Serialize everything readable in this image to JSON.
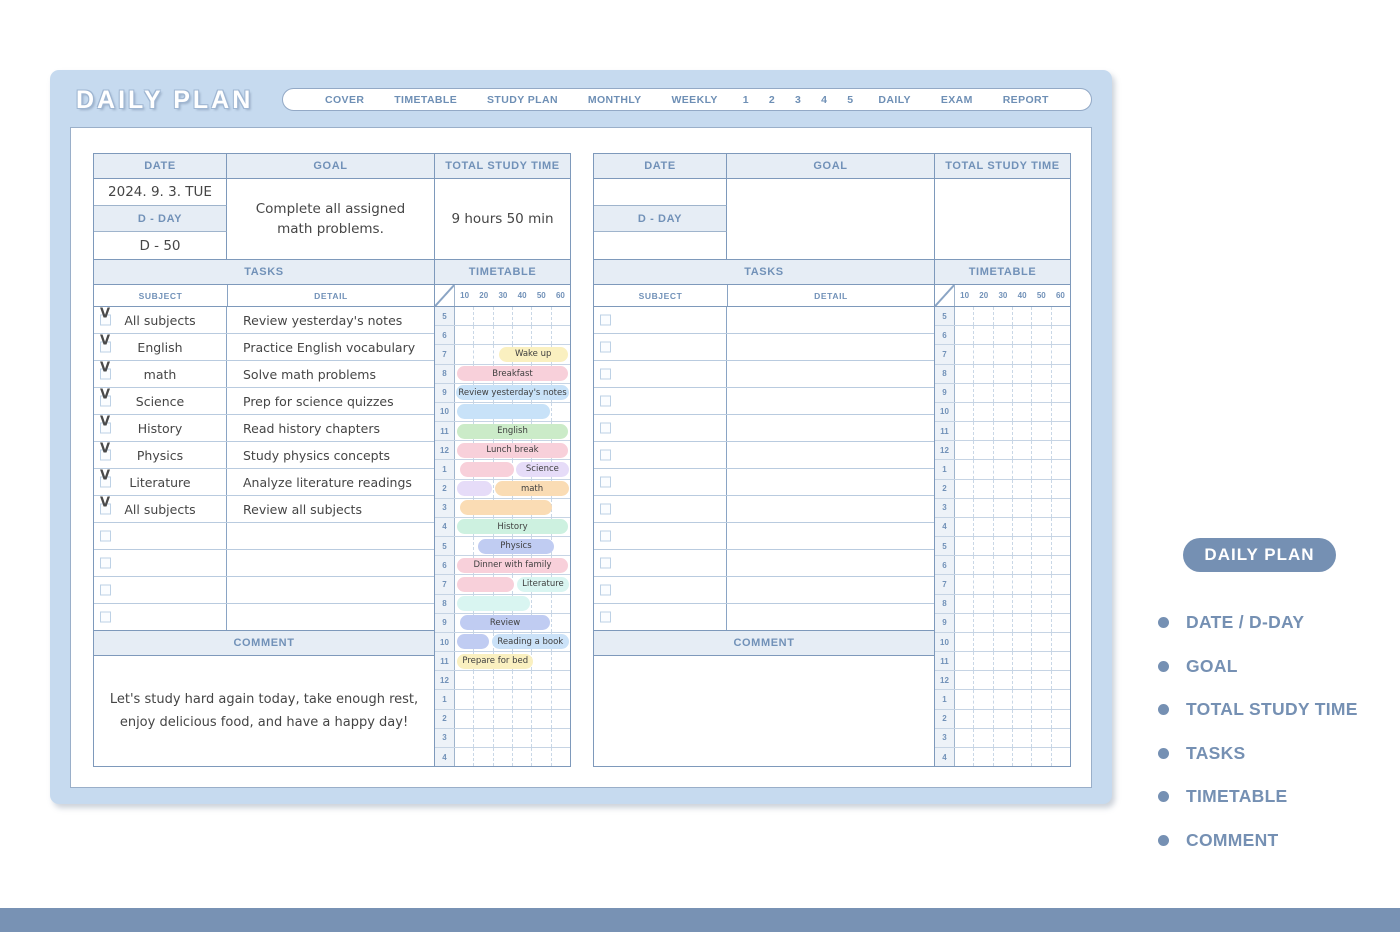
{
  "header": {
    "title": "DAILY PLAN",
    "nav": [
      "COVER",
      "TIMETABLE",
      "STUDY PLAN",
      "MONTHLY",
      "WEEKLY",
      "1",
      "2",
      "3",
      "4",
      "5",
      "DAILY",
      "EXAM",
      "REPORT"
    ]
  },
  "labels": {
    "date": "DATE",
    "goal": "GOAL",
    "total_study_time": "TOTAL STUDY TIME",
    "d_day": "D - DAY",
    "tasks": "TASKS",
    "subject": "SUBJECT",
    "detail": "DETAIL",
    "timetable": "TIMETABLE",
    "comment": "COMMENT"
  },
  "timetable": {
    "minutes": [
      "10",
      "20",
      "30",
      "40",
      "50",
      "60"
    ],
    "hours": [
      "5",
      "6",
      "7",
      "8",
      "9",
      "10",
      "11",
      "12",
      "1",
      "2",
      "3",
      "4",
      "5",
      "6",
      "7",
      "8",
      "9",
      "10",
      "11",
      "12",
      "1",
      "2",
      "3",
      "4"
    ]
  },
  "left_page": {
    "date_value": "2024. 9. 3. TUE",
    "d_day_value": "D - 50",
    "goal_value": "Complete all assigned math problems.",
    "total_study_time_value": "9 hours 50 min",
    "comment_value": "Let's study hard again today, take enough rest, enjoy delicious food, and have a happy day!",
    "tasks": [
      {
        "checked": true,
        "subject": "All subjects",
        "detail": "Review yesterday's notes"
      },
      {
        "checked": true,
        "subject": "English",
        "detail": "Practice English vocabulary"
      },
      {
        "checked": true,
        "subject": "math",
        "detail": "Solve math problems"
      },
      {
        "checked": true,
        "subject": "Science",
        "detail": "Prep for science quizzes"
      },
      {
        "checked": true,
        "subject": "History",
        "detail": "Read history chapters"
      },
      {
        "checked": true,
        "subject": "Physics",
        "detail": "Study physics concepts"
      },
      {
        "checked": true,
        "subject": "Literature",
        "detail": "Analyze literature readings"
      },
      {
        "checked": true,
        "subject": "All subjects",
        "detail": "Review all subjects"
      },
      {
        "checked": false,
        "subject": "",
        "detail": ""
      },
      {
        "checked": false,
        "subject": "",
        "detail": ""
      },
      {
        "checked": false,
        "subject": "",
        "detail": ""
      },
      {
        "checked": false,
        "subject": "",
        "detail": ""
      }
    ],
    "timetable_bars": {
      "2": [
        {
          "label": "Wake up",
          "start": 38,
          "end": 98,
          "color": "yellow"
        }
      ],
      "3": [
        {
          "label": "Breakfast",
          "start": 2,
          "end": 98,
          "color": "pink"
        }
      ],
      "4": [
        {
          "label": "Review yesterday's notes",
          "start": 1,
          "end": 99,
          "color": "blue"
        }
      ],
      "5": [
        {
          "label": "",
          "start": 2,
          "end": 83,
          "color": "blue"
        }
      ],
      "6": [
        {
          "label": "English",
          "start": 2,
          "end": 98,
          "color": "green"
        }
      ],
      "7": [
        {
          "label": "Lunch break",
          "start": 2,
          "end": 98,
          "color": "pink"
        }
      ],
      "8": [
        {
          "label": "",
          "start": 4,
          "end": 51,
          "color": "pink"
        },
        {
          "label": "Science",
          "start": 53,
          "end": 99,
          "color": "lavender"
        }
      ],
      "9": [
        {
          "label": "",
          "start": 2,
          "end": 32,
          "color": "lavender"
        },
        {
          "label": "math",
          "start": 35,
          "end": 99,
          "color": "orange"
        }
      ],
      "10": [
        {
          "label": "",
          "start": 4,
          "end": 84,
          "color": "orange"
        }
      ],
      "11": [
        {
          "label": "History",
          "start": 2,
          "end": 98,
          "color": "mint"
        }
      ],
      "12": [
        {
          "label": "Physics",
          "start": 20,
          "end": 86,
          "color": "periwinkle"
        }
      ],
      "13": [
        {
          "label": "Dinner with family",
          "start": 2,
          "end": 98,
          "color": "pink"
        }
      ],
      "14": [
        {
          "label": "",
          "start": 2,
          "end": 51,
          "color": "pink"
        },
        {
          "label": "Literature",
          "start": 54,
          "end": 99,
          "color": "cyan"
        }
      ],
      "15": [
        {
          "label": "",
          "start": 2,
          "end": 65,
          "color": "cyan"
        }
      ],
      "16": [
        {
          "label": "Review",
          "start": 4,
          "end": 83,
          "color": "periwinkle"
        }
      ],
      "17": [
        {
          "label": "",
          "start": 2,
          "end": 30,
          "color": "periwinkle"
        },
        {
          "label": "Reading a book",
          "start": 32,
          "end": 99,
          "color": "lightblue"
        }
      ],
      "18": [
        {
          "label": "Prepare for bed",
          "start": 2,
          "end": 68,
          "color": "yellow"
        }
      ]
    }
  },
  "right_page": {
    "date_value": "",
    "d_day_value": "",
    "goal_value": "",
    "total_study_time_value": "",
    "comment_value": "",
    "tasks": [
      {
        "checked": false,
        "subject": "",
        "detail": ""
      },
      {
        "checked": false,
        "subject": "",
        "detail": ""
      },
      {
        "checked": false,
        "subject": "",
        "detail": ""
      },
      {
        "checked": false,
        "subject": "",
        "detail": ""
      },
      {
        "checked": false,
        "subject": "",
        "detail": ""
      },
      {
        "checked": false,
        "subject": "",
        "detail": ""
      },
      {
        "checked": false,
        "subject": "",
        "detail": ""
      },
      {
        "checked": false,
        "subject": "",
        "detail": ""
      },
      {
        "checked": false,
        "subject": "",
        "detail": ""
      },
      {
        "checked": false,
        "subject": "",
        "detail": ""
      },
      {
        "checked": false,
        "subject": "",
        "detail": ""
      },
      {
        "checked": false,
        "subject": "",
        "detail": ""
      }
    ],
    "timetable_bars": {}
  },
  "sidebar": {
    "badge": "DAILY PLAN",
    "items": [
      "DATE / D-DAY",
      "GOAL",
      "TOTAL STUDY TIME",
      "TASKS",
      "TIMETABLE",
      "COMMENT"
    ]
  },
  "colors": {
    "panel": "#C6DAEF",
    "accent": "#7590B3",
    "header_text": "#7191B8",
    "bars": {
      "yellow": "#FAF0C0",
      "pink": "#F8D0DA",
      "blue": "#C8E2F8",
      "green": "#CBEBC8",
      "lavender": "#E6DCF8",
      "orange": "#FADCB4",
      "mint": "#CDF1E0",
      "periwinkle": "#C0CCF2",
      "cyan": "#D9F5F1",
      "lightblue": "#CBE2F8"
    }
  }
}
